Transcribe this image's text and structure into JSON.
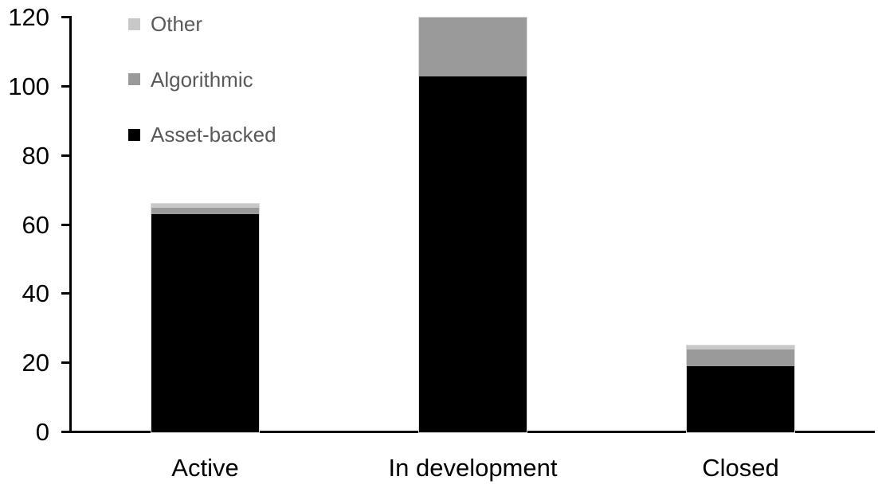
{
  "chart_data": {
    "type": "bar",
    "stacked": true,
    "title": "",
    "xlabel": "",
    "ylabel": "",
    "categories": [
      "Active",
      "In development",
      "Closed"
    ],
    "series": [
      {
        "name": "Other",
        "color": "#c8c8c8",
        "values": [
          1,
          0,
          1
        ]
      },
      {
        "name": "Algorithmic",
        "color": "#9a9a9a",
        "values": [
          2,
          17,
          5
        ]
      },
      {
        "name": "Asset-backed",
        "color": "#000000",
        "values": [
          63,
          103,
          19
        ]
      }
    ],
    "ylim": [
      0,
      120
    ],
    "yticks": [
      0,
      20,
      40,
      60,
      80,
      100,
      120
    ],
    "grid": false,
    "legend_position": "top-left",
    "legend_text_color": "#595959",
    "axis_color": "#000000",
    "background_color": "#ffffff"
  }
}
